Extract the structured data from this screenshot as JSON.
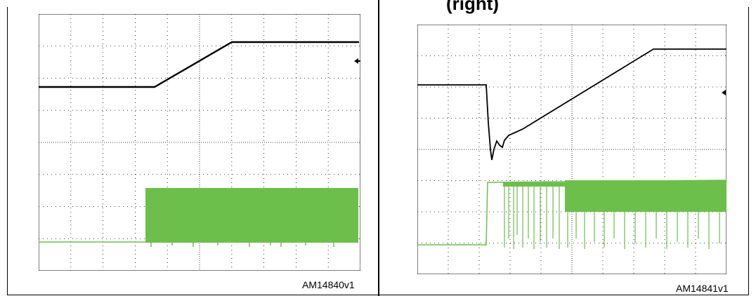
{
  "header": {
    "title_fragment": "(right)"
  },
  "panels": [
    {
      "id": "left",
      "caption": "AM14840v1",
      "trace_color": "#000000",
      "pwm_color": "#6cbf4b",
      "marker_icon": "left-arrow-icon"
    },
    {
      "id": "right",
      "caption": "AM14841v1",
      "trace_color": "#000000",
      "pwm_color": "#6cbf4b",
      "marker_icon": "left-arrow-icon"
    }
  ]
}
